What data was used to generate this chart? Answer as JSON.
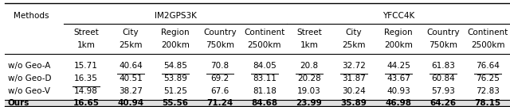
{
  "title_im2gps3k": "IM2GPS3K",
  "title_yfcc4k": "YFCC4K",
  "col_header_line1": [
    "Street",
    "City",
    "Region",
    "Country",
    "Continent",
    "Street",
    "City",
    "Region",
    "Country",
    "Continent"
  ],
  "col_header_line2": [
    "1km",
    "25km",
    "200km",
    "750km",
    "2500km",
    "1km",
    "25km",
    "200km",
    "750km",
    "2500km"
  ],
  "row_labels": [
    "w/o Geo-A",
    "w/o Geo-D",
    "w/o Geo-V",
    "Ours"
  ],
  "data_str_vals": [
    [
      "15.71",
      "40.64",
      "54.85",
      "70.8",
      "84.05",
      "20.8",
      "32.72",
      "44.25",
      "61.83",
      "76.64"
    ],
    [
      "16.35",
      "40.51",
      "53.89",
      "69.2",
      "83.11",
      "20.28",
      "31.87",
      "43.67",
      "60.84",
      "76.25"
    ],
    [
      "14.98",
      "38.27",
      "51.25",
      "67.6",
      "81.18",
      "19.03",
      "30.24",
      "40.93",
      "57.93",
      "72.83"
    ],
    [
      "16.65",
      "40.94",
      "55.56",
      "71.24",
      "84.68",
      "23.99",
      "35.89",
      "46.98",
      "64.26",
      "78.15"
    ]
  ],
  "underline_cells": [
    [
      false,
      true,
      true,
      true,
      true,
      true,
      true,
      true,
      true,
      true
    ],
    [
      true,
      false,
      false,
      false,
      false,
      false,
      false,
      false,
      false,
      false
    ],
    [
      true,
      false,
      false,
      false,
      false,
      false,
      false,
      false,
      false,
      false
    ],
    [
      false,
      false,
      false,
      false,
      false,
      false,
      false,
      false,
      false,
      false
    ]
  ],
  "bold_row": [
    false,
    false,
    false,
    true
  ],
  "bg_last_row": "#e0e0e0",
  "font_size": 7.5,
  "header_font_size": 7.5,
  "methods_label": "Methods",
  "figwidth": 6.4,
  "figheight": 1.35,
  "dpi": 100
}
